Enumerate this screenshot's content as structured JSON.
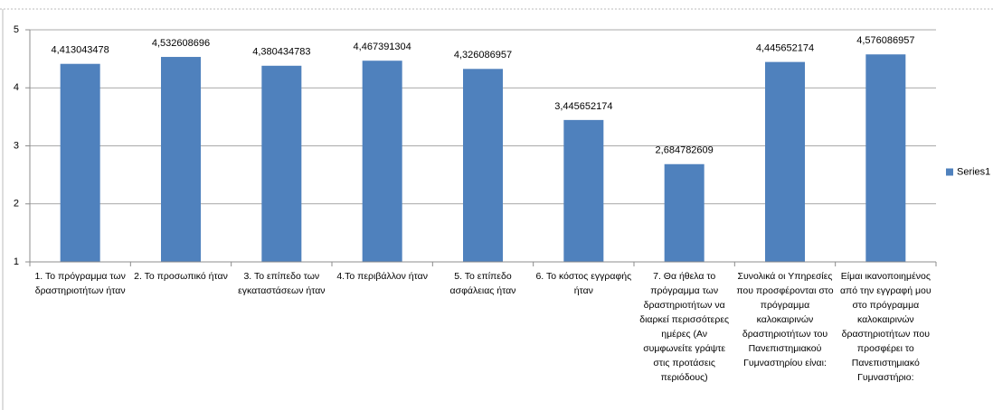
{
  "chart_data": {
    "type": "bar",
    "categories": [
      "1. Το πρόγραμμα των δραστηριοτήτων ήταν",
      "2. Το προσωπικό ήταν",
      "3. Το επίπεδο των εγκαταστάσεων ήταν",
      "4.Το περιβάλλον ήταν",
      "5. Το επίπεδο ασφάλειας ήταν",
      "6. Το κόστος εγγραφής ήταν",
      "7. Θα ήθελα το πρόγραμμα των δραστηριοτήτων να διαρκεί περισσότερες ημέρες (Αν συμφωνείτε γράψτε στις προτάσεις περιόδους)",
      "Συνολικά οι Υπηρεσίες που προσφέρονται στο πρόγραμμα καλοκαιρινών δραστηριοτήτων του Πανεπιστημιακού Γυμναστηρίου είναι:",
      "Είμαι ικανοποιημένος από την εγγραφή μου στο πρόγραμμα καλοκαιρινών δραστηριοτήτων που προσφέρει το Πανεπιστημιακό Γυμναστήριο:"
    ],
    "series": [
      {
        "name": "Series1",
        "color": "#4f81bd",
        "values": [
          4.413043478,
          4.532608696,
          4.380434783,
          4.467391304,
          4.326086957,
          3.445652174,
          2.684782609,
          4.445652174,
          4.576086957
        ],
        "value_labels": [
          "4,413043478",
          "4,532608696",
          "4,380434783",
          "4,467391304",
          "4,326086957",
          "3,445652174",
          "2,684782609",
          "4,445652174",
          "4,576086957"
        ]
      }
    ],
    "ylim": [
      1,
      5
    ],
    "yticks": [
      1,
      2,
      3,
      4,
      5
    ],
    "grid": true,
    "legend": "right"
  }
}
